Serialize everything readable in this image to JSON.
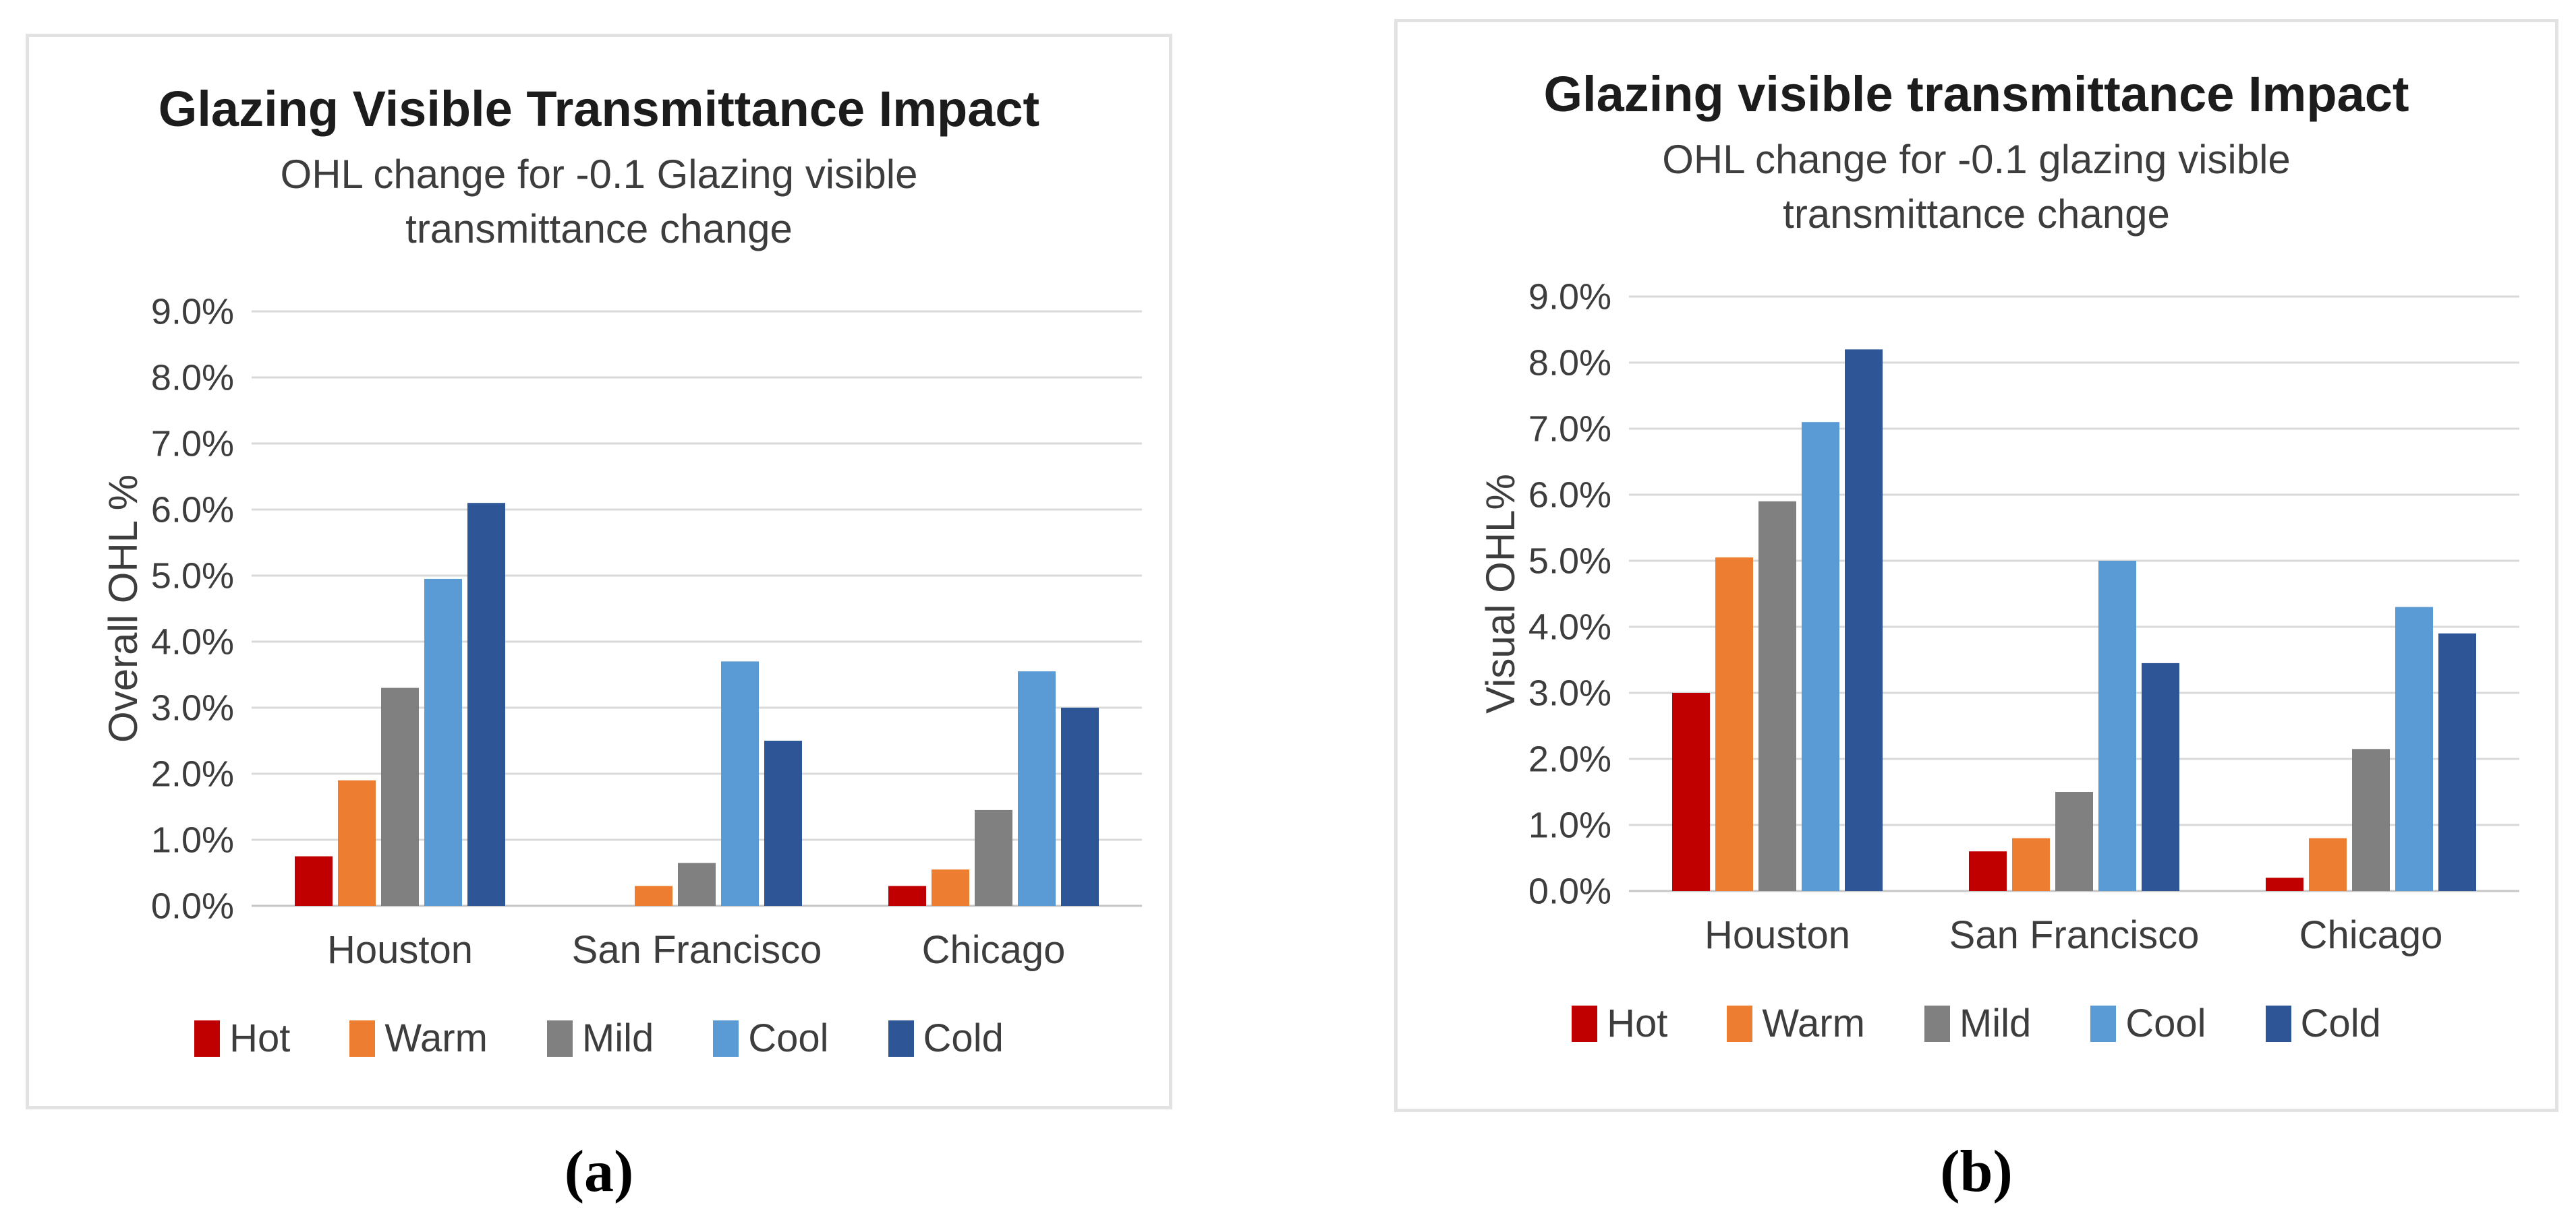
{
  "figure": {
    "captions": {
      "a": "(a)",
      "b": "(b)"
    }
  },
  "colors": {
    "hot": "#C00000",
    "warm": "#ED7D31",
    "mild": "#808080",
    "cool": "#5B9BD5",
    "cold": "#2E5596",
    "gridline": "#D9D9D9",
    "baseline": "#C6C6C6",
    "axis_text": "#3d3d3d",
    "title_text": "#1c1c1c"
  },
  "chart_data": [
    {
      "id": "chart-a",
      "type": "bar",
      "title": "Glazing Visible Transmittance Impact",
      "subtitle_line1": "OHL change for -0.1 Glazing visible",
      "subtitle_line2": "transmittance change",
      "xlabel": "",
      "ylabel": "Overall OHL %",
      "categories": [
        "Houston",
        "San Francisco",
        "Chicago"
      ],
      "series": [
        {
          "name": "Hot",
          "color": "#C00000",
          "values": [
            0.75,
            0.0,
            0.3
          ]
        },
        {
          "name": "Warm",
          "color": "#ED7D31",
          "values": [
            1.9,
            0.3,
            0.55
          ]
        },
        {
          "name": "Mild",
          "color": "#808080",
          "values": [
            3.3,
            0.65,
            1.45
          ]
        },
        {
          "name": "Cool",
          "color": "#5B9BD5",
          "values": [
            4.95,
            3.7,
            3.55
          ]
        },
        {
          "name": "Cold",
          "color": "#2E5596",
          "values": [
            6.1,
            2.5,
            3.0
          ]
        }
      ],
      "ylim": [
        0,
        9
      ],
      "ytick_step": 1,
      "yticks": [
        "0.0%",
        "1.0%",
        "2.0%",
        "3.0%",
        "4.0%",
        "5.0%",
        "6.0%",
        "7.0%",
        "8.0%",
        "9.0%"
      ],
      "grid": true,
      "legend_position": "bottom"
    },
    {
      "id": "chart-b",
      "type": "bar",
      "title": "Glazing visible transmittance Impact",
      "subtitle_line1": "OHL change for -0.1 glazing visible",
      "subtitle_line2": "transmittance change",
      "xlabel": "",
      "ylabel": "Visual OHL%",
      "categories": [
        "Houston",
        "San Francisco",
        "Chicago"
      ],
      "series": [
        {
          "name": "Hot",
          "color": "#C00000",
          "values": [
            3.0,
            0.6,
            0.2
          ]
        },
        {
          "name": "Warm",
          "color": "#ED7D31",
          "values": [
            5.05,
            0.8,
            0.8
          ]
        },
        {
          "name": "Mild",
          "color": "#808080",
          "values": [
            5.9,
            1.5,
            2.15
          ]
        },
        {
          "name": "Cool",
          "color": "#5B9BD5",
          "values": [
            7.1,
            5.0,
            4.3
          ]
        },
        {
          "name": "Cold",
          "color": "#2E5596",
          "values": [
            8.2,
            3.45,
            3.9
          ]
        }
      ],
      "ylim": [
        0,
        9
      ],
      "ytick_step": 1,
      "yticks": [
        "0.0%",
        "1.0%",
        "2.0%",
        "3.0%",
        "4.0%",
        "5.0%",
        "6.0%",
        "7.0%",
        "8.0%",
        "9.0%"
      ],
      "grid": true,
      "legend_position": "bottom"
    }
  ]
}
